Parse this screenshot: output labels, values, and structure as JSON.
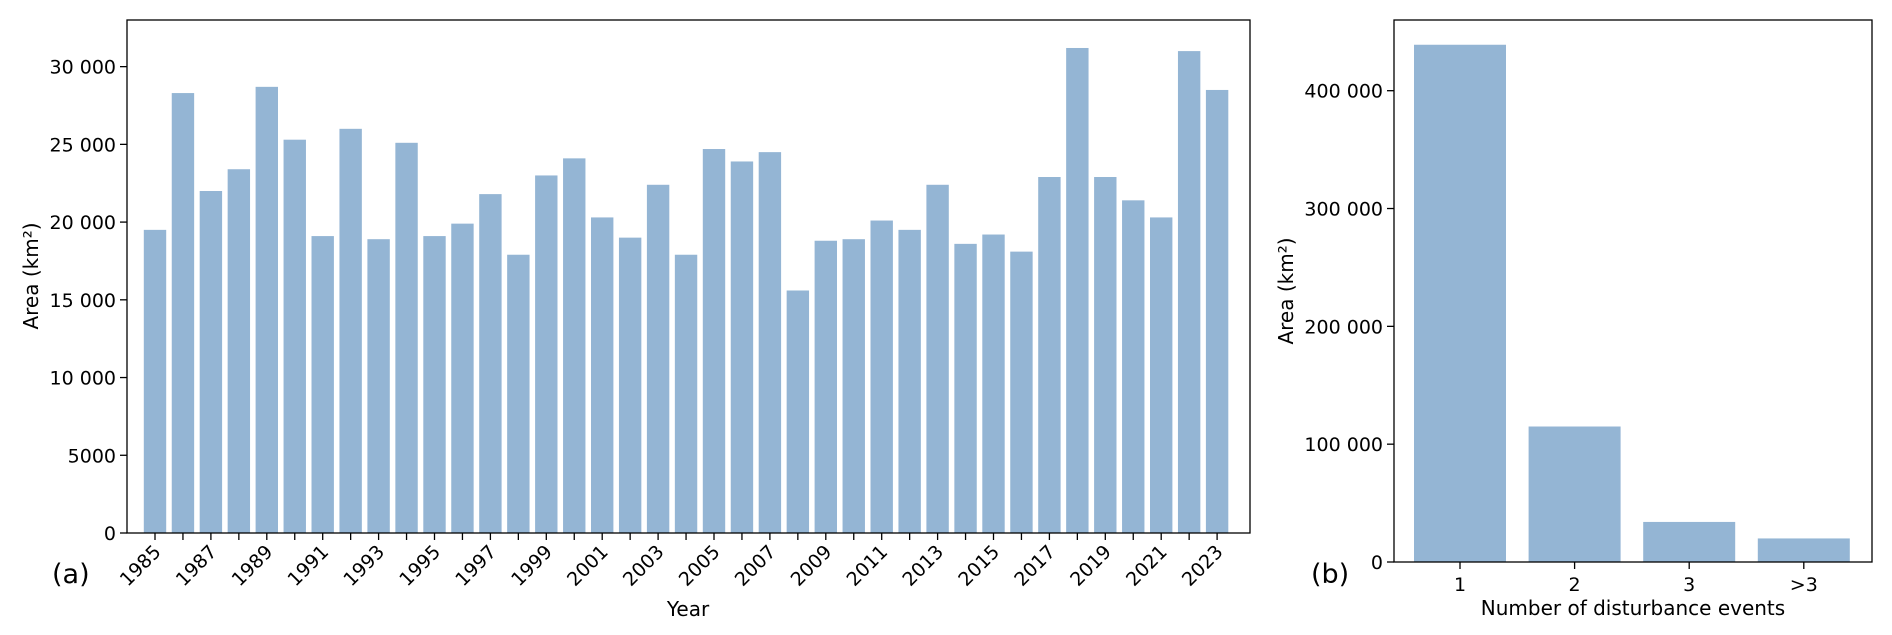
{
  "colors": {
    "bar": "#94b5d4",
    "axis": "#000000",
    "background": "#ffffff"
  },
  "chart_data": [
    {
      "panel": "(a)",
      "type": "bar",
      "xlabel": "Year",
      "ylabel": "Area (km²)",
      "ylim": [
        0,
        33000
      ],
      "yticks": [
        0,
        5000,
        10000,
        15000,
        20000,
        25000,
        30000
      ],
      "ytick_labels": [
        "0",
        "5000",
        "10 000",
        "15 000",
        "20 000",
        "25 000",
        "30 000"
      ],
      "categories": [
        "1985",
        "1986",
        "1987",
        "1988",
        "1989",
        "1990",
        "1991",
        "1992",
        "1993",
        "1994",
        "1995",
        "1996",
        "1997",
        "1998",
        "1999",
        "2000",
        "2001",
        "2002",
        "2003",
        "2004",
        "2005",
        "2006",
        "2007",
        "2008",
        "2009",
        "2010",
        "2011",
        "2012",
        "2013",
        "2014",
        "2015",
        "2016",
        "2017",
        "2018",
        "2019",
        "2020",
        "2021",
        "2022",
        "2023"
      ],
      "xtick_labels": [
        "1985",
        "1987",
        "1989",
        "1991",
        "1993",
        "1995",
        "1997",
        "1999",
        "2001",
        "2003",
        "2005",
        "2007",
        "2009",
        "2011",
        "2013",
        "2015",
        "2017",
        "2019",
        "2021",
        "2023"
      ],
      "values": [
        19500,
        28300,
        22000,
        23400,
        28700,
        25300,
        19100,
        26000,
        18900,
        25100,
        19100,
        19900,
        21800,
        17900,
        23000,
        24100,
        20300,
        19000,
        22400,
        17900,
        24700,
        23900,
        24500,
        15600,
        18800,
        18900,
        20100,
        19500,
        22400,
        18600,
        19200,
        18100,
        22900,
        31200,
        22900,
        21400,
        20300,
        31000,
        28500
      ],
      "grid": false,
      "legend": "none"
    },
    {
      "panel": "(b)",
      "type": "bar",
      "xlabel": "Number of disturbance events",
      "ylabel": "Area (km²)",
      "ylim": [
        0,
        460000
      ],
      "yticks": [
        0,
        100000,
        200000,
        300000,
        400000
      ],
      "ytick_labels": [
        "0",
        "100 000",
        "200 000",
        "300 000",
        "400 000"
      ],
      "categories": [
        "1",
        "2",
        "3",
        ">3"
      ],
      "xtick_labels": [
        "1",
        "2",
        "3",
        ">3"
      ],
      "values": [
        439000,
        115000,
        34000,
        20000
      ],
      "grid": false,
      "legend": "none"
    }
  ]
}
